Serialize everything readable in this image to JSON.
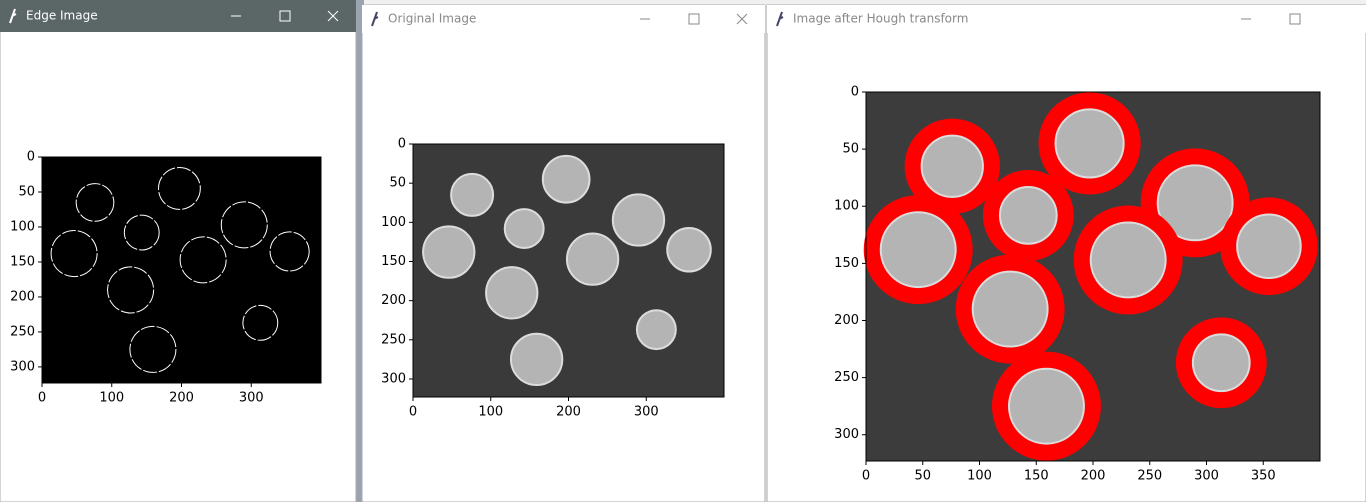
{
  "windows": [
    {
      "title": "Edge Image",
      "plot": {
        "xlim": [
          0,
          400
        ],
        "ylim": [
          323,
          0
        ],
        "xticks": [
          0,
          100,
          200,
          300
        ],
        "yticks": [
          0,
          50,
          100,
          150,
          200,
          250,
          300
        ]
      }
    },
    {
      "title": "Original Image",
      "plot": {
        "xlim": [
          0,
          400
        ],
        "ylim": [
          323,
          0
        ],
        "xticks": [
          0,
          100,
          200,
          300
        ],
        "yticks": [
          0,
          50,
          100,
          150,
          200,
          250,
          300
        ]
      }
    },
    {
      "title": "Image after Hough transform",
      "plot": {
        "xlim": [
          0,
          400
        ],
        "ylim": [
          323,
          0
        ],
        "xticks": [
          0,
          50,
          100,
          150,
          200,
          250,
          300,
          350
        ],
        "yticks": [
          0,
          50,
          100,
          150,
          200,
          250,
          300
        ]
      }
    }
  ]
}
